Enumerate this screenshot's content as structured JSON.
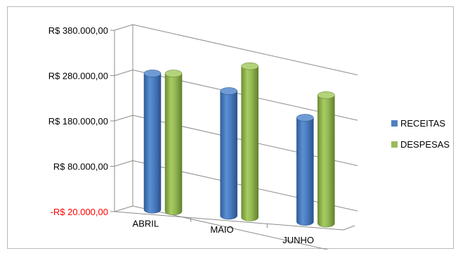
{
  "chart_data": {
    "type": "bar",
    "style": "3d-cylinder",
    "categories": [
      "ABRIL",
      "MAIO",
      "JUNHO"
    ],
    "series": [
      {
        "name": "RECEITAS",
        "color": "#4f81bd",
        "values": [
          305000,
          285000,
          245000
        ]
      },
      {
        "name": "DESPESAS",
        "color": "#9bbb59",
        "values": [
          310000,
          345000,
          300000
        ]
      }
    ],
    "yticks": [
      "R$ 380.000,00",
      "R$ 280.000,00",
      "R$ 180.000,00",
      "R$ 80.000,00",
      "-R$ 20.000,00"
    ],
    "ytick_values": [
      380000,
      280000,
      180000,
      80000,
      -20000
    ],
    "ylim": [
      -20000,
      380000
    ],
    "negative_tick_color": "#ff0000",
    "grid": true,
    "legend_position": "right"
  }
}
